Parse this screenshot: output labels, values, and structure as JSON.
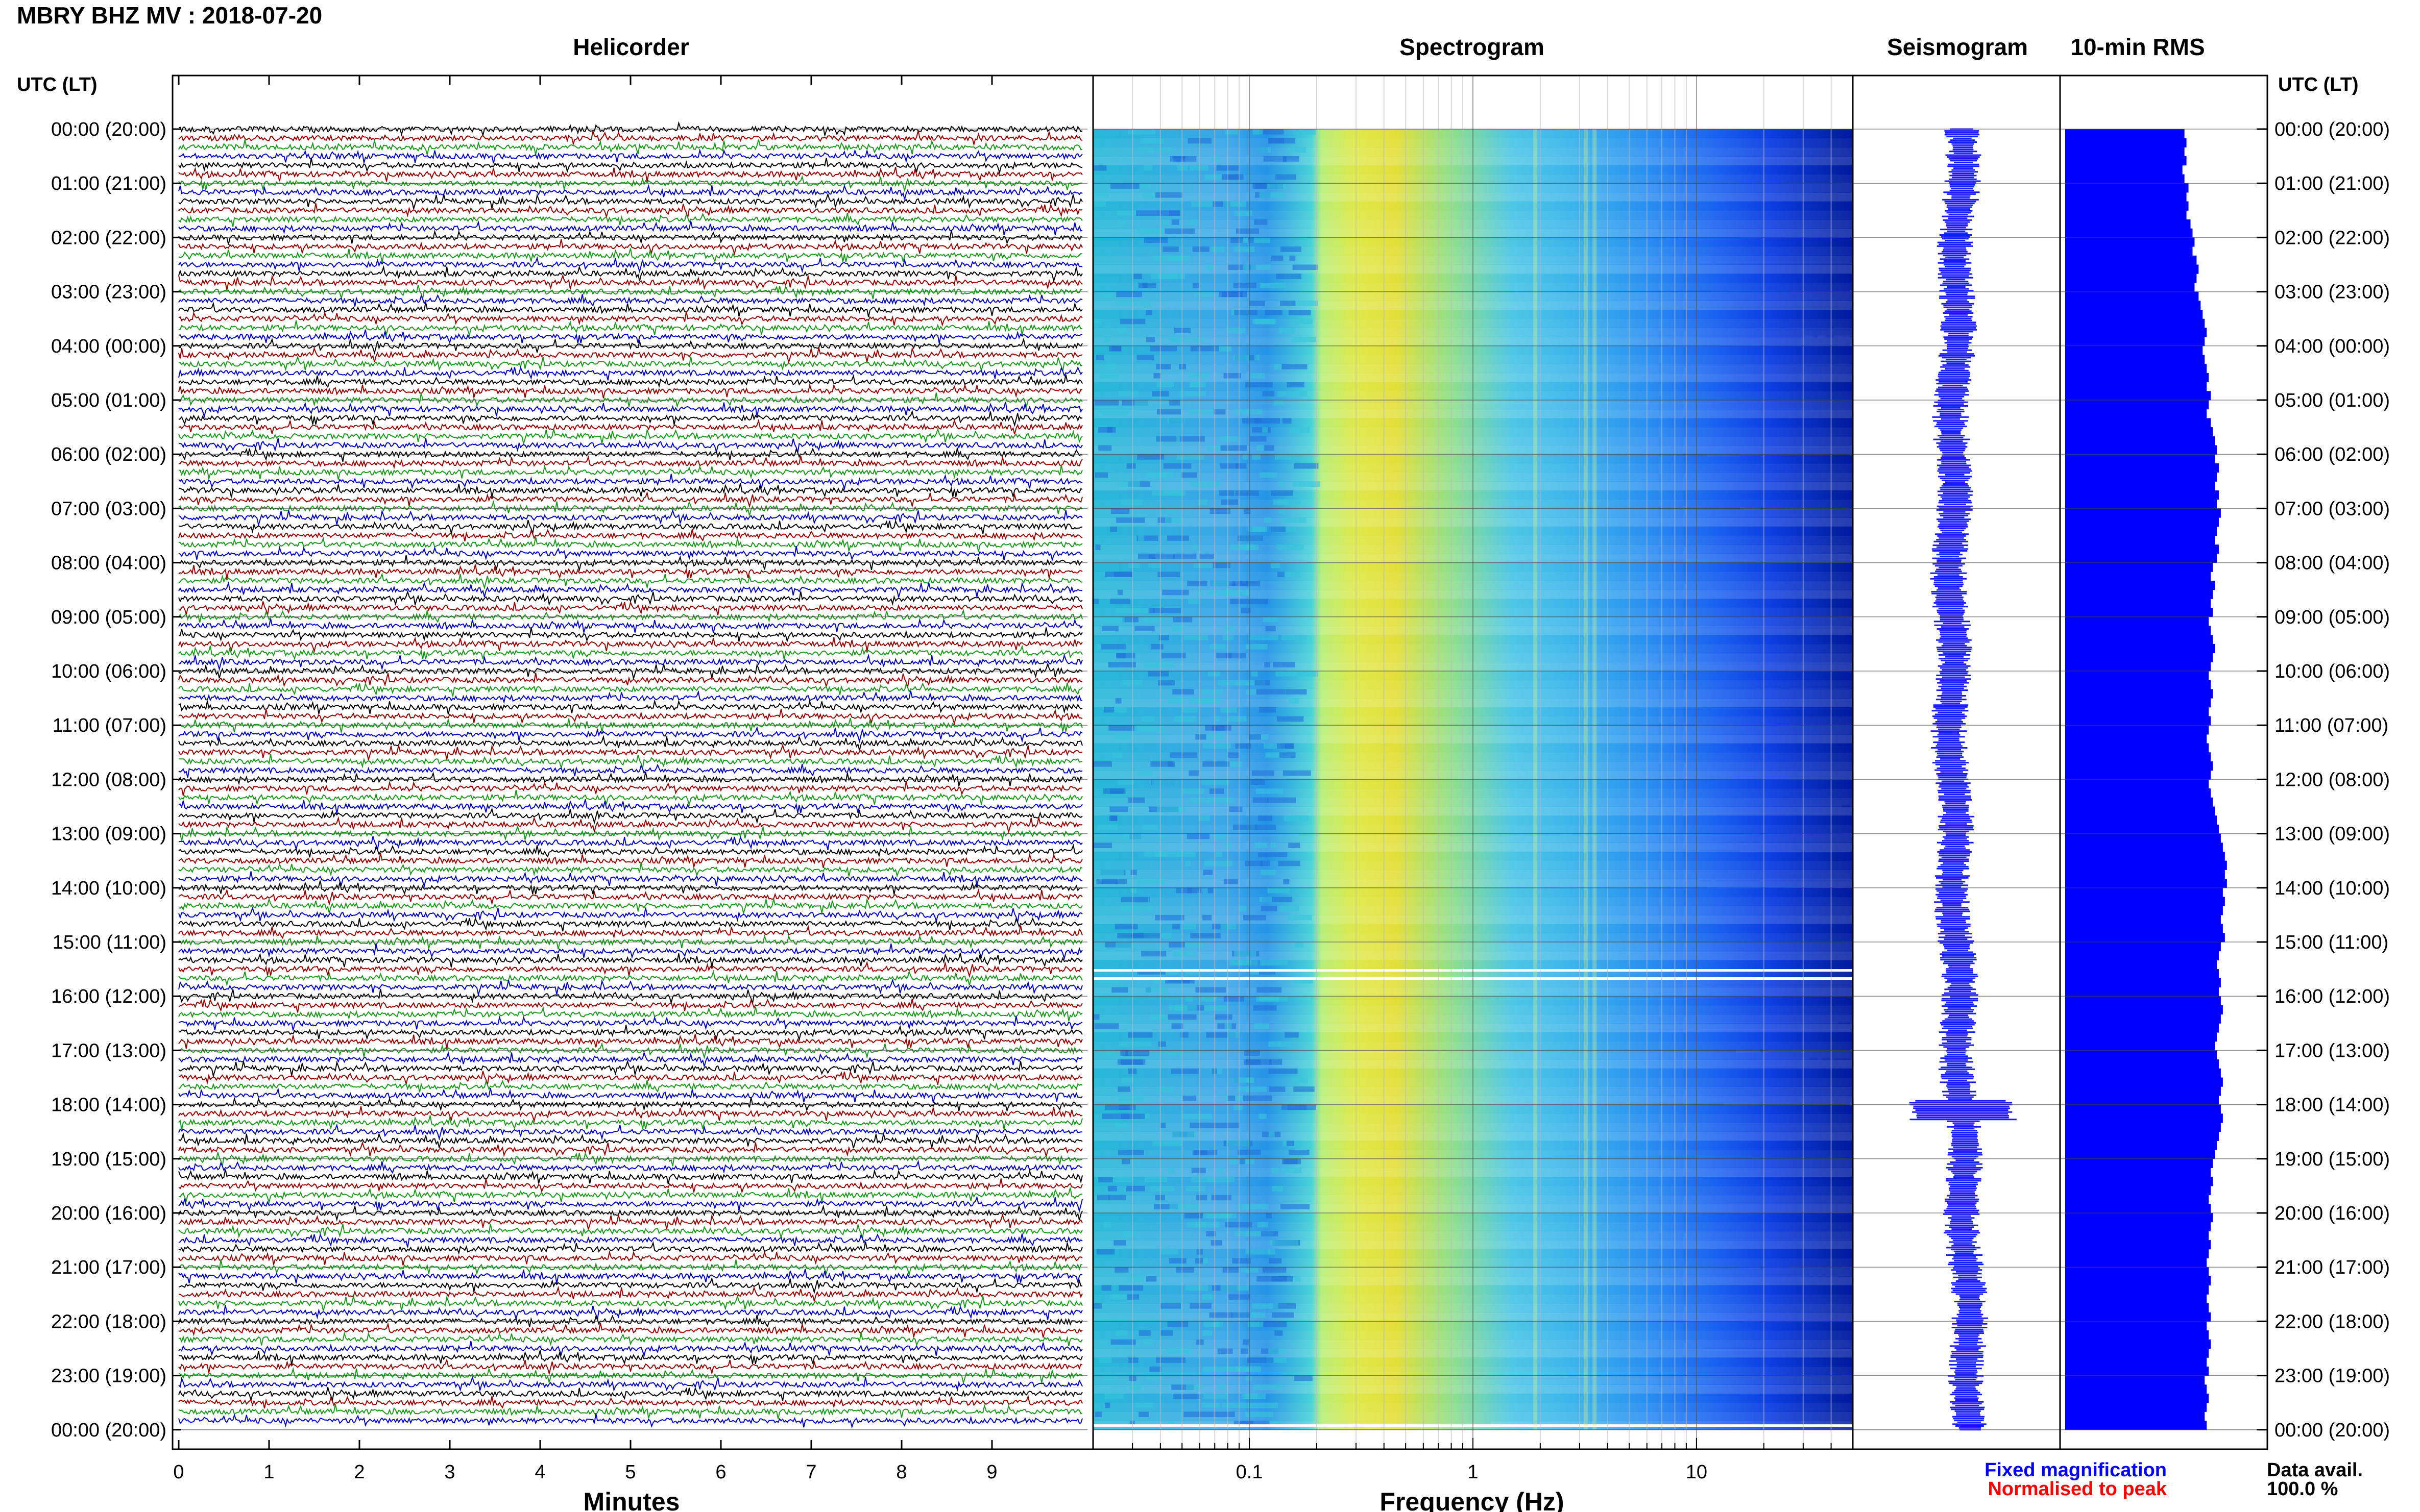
{
  "title": "MBRY BHZ MV : 2018-07-20",
  "panels": {
    "helicorder": "Helicorder",
    "spectrogram": "Spectrogram",
    "seismogram": "Seismogram",
    "rms": "10-min RMS"
  },
  "utc_label": "UTC (LT)",
  "hour_labels": [
    "00:00 (20:00)",
    "01:00 (21:00)",
    "02:00 (22:00)",
    "03:00 (23:00)",
    "04:00 (00:00)",
    "05:00 (01:00)",
    "06:00 (02:00)",
    "07:00 (03:00)",
    "08:00 (04:00)",
    "09:00 (05:00)",
    "10:00 (06:00)",
    "11:00 (07:00)",
    "12:00 (08:00)",
    "13:00 (09:00)",
    "14:00 (10:00)",
    "15:00 (11:00)",
    "16:00 (12:00)",
    "17:00 (13:00)",
    "18:00 (14:00)",
    "19:00 (15:00)",
    "20:00 (16:00)",
    "21:00 (17:00)",
    "22:00 (18:00)",
    "23:00 (19:00)",
    "00:00 (20:00)"
  ],
  "minutes_axis": {
    "label": "Minutes",
    "ticks": [
      "0",
      "1",
      "2",
      "3",
      "4",
      "5",
      "6",
      "7",
      "8",
      "9"
    ]
  },
  "frequency_axis": {
    "label": "Frequency (Hz)",
    "ticks": [
      "0.1",
      "1",
      "10"
    ],
    "scale": "log"
  },
  "legend": {
    "fixed": "Fixed magnification",
    "normalised": "Normalised to peak"
  },
  "data_avail": {
    "label": "Data avail.",
    "value": "100.0 %"
  },
  "colors": {
    "trace_cycle": [
      "#000000",
      "#9b0000",
      "#1a9a1a",
      "#0000c8"
    ],
    "seismo": "#1a1aff",
    "rms": "#0000ff",
    "fixed_text": "#0000ff",
    "norm_text": "#ff0000"
  },
  "chart_data": {
    "type": "heatmap",
    "rms_10min_relative_width": [
      0.59,
      0.6,
      0.59,
      0.6,
      0.58,
      0.59,
      0.61,
      0.6,
      0.61,
      0.6,
      0.62,
      0.63,
      0.64,
      0.63,
      0.65,
      0.66,
      0.65,
      0.64,
      0.66,
      0.67,
      0.68,
      0.69,
      0.7,
      0.69,
      0.68,
      0.69,
      0.7,
      0.71,
      0.7,
      0.72,
      0.71,
      0.7,
      0.72,
      0.73,
      0.74,
      0.75,
      0.74,
      0.76,
      0.75,
      0.74,
      0.76,
      0.75,
      0.77,
      0.76,
      0.75,
      0.74,
      0.76,
      0.75,
      0.73,
      0.72,
      0.74,
      0.73,
      0.72,
      0.73,
      0.71,
      0.72,
      0.73,
      0.74,
      0.73,
      0.72,
      0.71,
      0.72,
      0.73,
      0.72,
      0.71,
      0.72,
      0.71,
      0.7,
      0.71,
      0.72,
      0.73,
      0.72,
      0.71,
      0.72,
      0.73,
      0.74,
      0.75,
      0.76,
      0.77,
      0.78,
      0.79,
      0.8,
      0.79,
      0.8,
      0.78,
      0.79,
      0.78,
      0.77,
      0.78,
      0.79,
      0.77,
      0.76,
      0.75,
      0.76,
      0.77,
      0.76,
      0.77,
      0.78,
      0.77,
      0.76,
      0.75,
      0.74,
      0.75,
      0.76,
      0.77,
      0.78,
      0.77,
      0.76,
      0.77,
      0.78,
      0.77,
      0.76,
      0.75,
      0.74,
      0.73,
      0.72,
      0.73,
      0.72,
      0.71,
      0.72,
      0.73,
      0.72,
      0.71,
      0.72,
      0.71,
      0.7,
      0.71,
      0.72,
      0.71,
      0.7,
      0.71,
      0.72,
      0.7,
      0.71,
      0.72,
      0.71,
      0.7,
      0.71,
      0.69,
      0.7,
      0.71,
      0.7,
      0.69,
      0.7
    ]
  }
}
